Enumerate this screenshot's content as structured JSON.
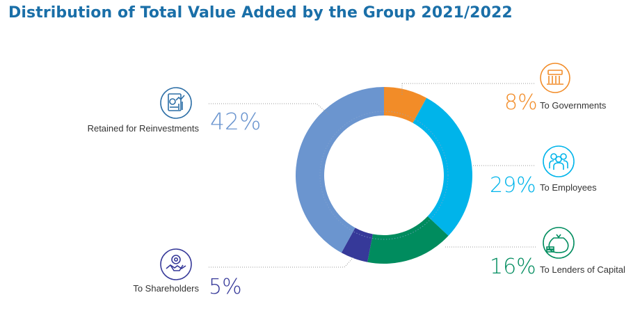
{
  "title": "Distribution of Total Value Added by the Group 2021/2022",
  "chart_data": {
    "type": "pie",
    "donut": true,
    "title": "Distribution of Total Value Added by the Group 2021/2022",
    "slices": [
      {
        "label": "To Governments",
        "value": 8,
        "value_text": "8%",
        "color": "#f28c28",
        "icon": "government-building-icon"
      },
      {
        "label": "To Employees",
        "value": 29,
        "value_text": "29%",
        "color": "#00b4ea",
        "icon": "employees-group-icon"
      },
      {
        "label": "To Lenders of Capital",
        "value": 16,
        "value_text": "16%",
        "color": "#008c5e",
        "icon": "money-bag-icon"
      },
      {
        "label": "To Shareholders",
        "value": 5,
        "value_text": "5%",
        "color": "#363999",
        "icon": "handshake-gear-icon"
      },
      {
        "label": "Retained for Reinvestments",
        "value": 42,
        "value_text": "42%",
        "color": "#6b95cf",
        "icon": "financial-report-icon"
      }
    ]
  }
}
